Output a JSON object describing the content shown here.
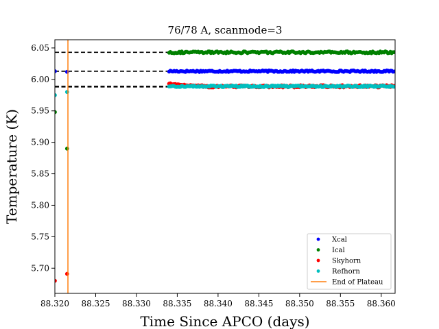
{
  "chart_data": {
    "type": "scatter",
    "title": "76/78 A, scanmode=3",
    "xlabel": "Time Since APCO (days)",
    "ylabel": "Temperature (K)",
    "xlim": [
      88.32,
      88.3617
    ],
    "ylim": [
      5.66,
      6.063
    ],
    "xticks": [
      88.32,
      88.325,
      88.33,
      88.335,
      88.34,
      88.345,
      88.35,
      88.355,
      88.36
    ],
    "xtick_labels": [
      "88.320",
      "88.325",
      "88.330",
      "88.335",
      "88.340",
      "88.345",
      "88.350",
      "88.355",
      "88.360"
    ],
    "yticks": [
      5.7,
      5.75,
      5.8,
      5.85,
      5.9,
      5.95,
      6.0,
      6.05
    ],
    "ytick_labels": [
      "5.70",
      "5.75",
      "5.80",
      "5.85",
      "5.90",
      "5.95",
      "6.00",
      "6.05"
    ],
    "grid": false,
    "legend_position": "lower-right",
    "series": [
      {
        "name": "Xcal",
        "color": "#0000ff",
        "transient": [
          [
            88.32,
            6.013
          ],
          [
            88.3215,
            6.012
          ]
        ],
        "plateau": {
          "x_start": 88.334,
          "x_end": 88.3617,
          "mean": 6.013,
          "jitter": 0.0012
        }
      },
      {
        "name": "Ical",
        "color": "#008000",
        "transient": [
          [
            88.32,
            5.948
          ],
          [
            88.3215,
            5.89
          ]
        ],
        "plateau": {
          "x_start": 88.334,
          "x_end": 88.3617,
          "mean": 6.043,
          "jitter": 0.0015
        }
      },
      {
        "name": "Skyhorn",
        "color": "#ff0000",
        "transient": [
          [
            88.32,
            5.68
          ],
          [
            88.3215,
            5.691
          ]
        ],
        "plateau": {
          "x_start": 88.334,
          "x_end": 88.3617,
          "mean": 5.989,
          "jitter": 0.0018,
          "start_value": 5.993
        }
      },
      {
        "name": "Refhorn",
        "color": "#00bfbf",
        "transient": [
          [
            88.32,
            5.975
          ],
          [
            88.3215,
            5.98
          ]
        ],
        "plateau": {
          "x_start": 88.334,
          "x_end": 88.3617,
          "mean": 5.989,
          "jitter": 0.0012
        }
      }
    ],
    "reference_lines": [
      {
        "style": "dashed",
        "color": "#000000",
        "y": 6.043,
        "x_start": 88.32,
        "x_end": 88.3617
      },
      {
        "style": "dashed",
        "color": "#000000",
        "y": 6.013,
        "x_start": 88.32,
        "x_end": 88.3617
      },
      {
        "style": "dashed",
        "color": "#000000",
        "y": 5.989,
        "x_start": 88.32,
        "x_end": 88.3617
      },
      {
        "style": "dashed",
        "color": "#000000",
        "y": 5.988,
        "x_start": 88.32,
        "x_end": 88.3617
      }
    ],
    "vertical_lines": [
      {
        "name": "End of Plateau",
        "color": "#ff7f0e",
        "x": 88.3216
      }
    ]
  }
}
